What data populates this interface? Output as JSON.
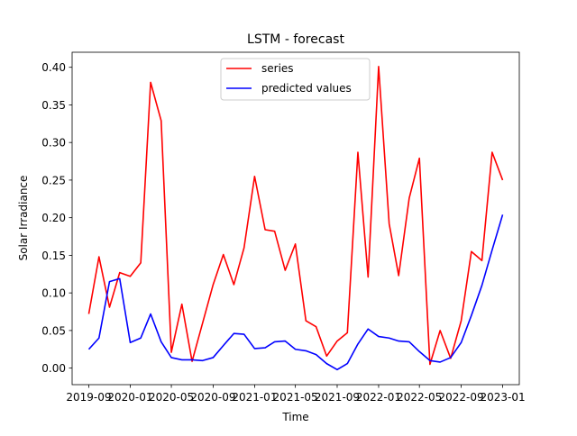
{
  "chart_data": {
    "type": "line",
    "title": "LSTM - forecast",
    "xlabel": "Time",
    "ylabel": "Solar Irradiance",
    "ylim": [
      -0.022,
      0.42
    ],
    "xlim": [
      "2019-07-14",
      "2023-02-19"
    ],
    "grid": false,
    "legend_position": "top-center",
    "x": [
      "2019-09-01",
      "2019-10-01",
      "2019-11-01",
      "2019-12-01",
      "2020-01-01",
      "2020-02-01",
      "2020-03-01",
      "2020-04-01",
      "2020-05-01",
      "2020-06-01",
      "2020-07-01",
      "2020-08-01",
      "2020-09-01",
      "2020-10-01",
      "2020-11-01",
      "2020-12-01",
      "2021-01-01",
      "2021-02-01",
      "2021-03-01",
      "2021-04-01",
      "2021-05-01",
      "2021-06-01",
      "2021-07-01",
      "2021-08-01",
      "2021-09-01",
      "2021-10-01",
      "2021-11-01",
      "2021-12-01",
      "2022-01-01",
      "2022-02-01",
      "2022-03-01",
      "2022-04-01",
      "2022-05-01",
      "2022-06-01",
      "2022-07-01",
      "2022-08-01",
      "2022-09-01",
      "2022-10-01",
      "2022-11-01",
      "2022-12-01",
      "2023-01-01"
    ],
    "series": [
      {
        "name": "series",
        "color": "#ff0000",
        "values": [
          0.072,
          0.148,
          0.081,
          0.127,
          0.122,
          0.14,
          0.38,
          0.329,
          0.021,
          0.085,
          0.009,
          0.06,
          0.111,
          0.151,
          0.111,
          0.16,
          0.255,
          0.184,
          0.182,
          0.13,
          0.165,
          0.063,
          0.055,
          0.016,
          0.036,
          0.047,
          0.287,
          0.121,
          0.401,
          0.192,
          0.123,
          0.226,
          0.279,
          0.005,
          0.05,
          0.013,
          0.063,
          0.155,
          0.143,
          0.287,
          0.25
        ]
      },
      {
        "name": "predicted values",
        "color": "#0000ff",
        "values": [
          0.025,
          0.04,
          0.115,
          0.119,
          0.034,
          0.04,
          0.072,
          0.035,
          0.014,
          0.011,
          0.011,
          0.01,
          0.014,
          0.03,
          0.046,
          0.045,
          0.026,
          0.027,
          0.035,
          0.036,
          0.025,
          0.023,
          0.018,
          0.006,
          -0.002,
          0.006,
          0.032,
          0.052,
          0.042,
          0.04,
          0.036,
          0.035,
          0.022,
          0.01,
          0.008,
          0.014,
          0.034,
          0.07,
          0.11,
          0.157,
          0.204
        ]
      }
    ],
    "yticks": [
      0.0,
      0.05,
      0.1,
      0.15,
      0.2,
      0.25,
      0.3,
      0.35,
      0.4
    ],
    "ytick_labels": [
      "0.00",
      "0.05",
      "0.10",
      "0.15",
      "0.20",
      "0.25",
      "0.30",
      "0.35",
      "0.40"
    ],
    "xticks": [
      "2019-09-01",
      "2020-01-01",
      "2020-05-01",
      "2020-09-01",
      "2021-01-01",
      "2021-05-01",
      "2021-09-01",
      "2022-01-01",
      "2022-05-01",
      "2022-09-01",
      "2023-01-01"
    ],
    "xtick_labels": [
      "2019-09",
      "2020-01",
      "2020-05",
      "2020-09",
      "2021-01",
      "2021-05",
      "2021-09",
      "2022-01",
      "2022-05",
      "2022-09",
      "2023-01"
    ]
  }
}
